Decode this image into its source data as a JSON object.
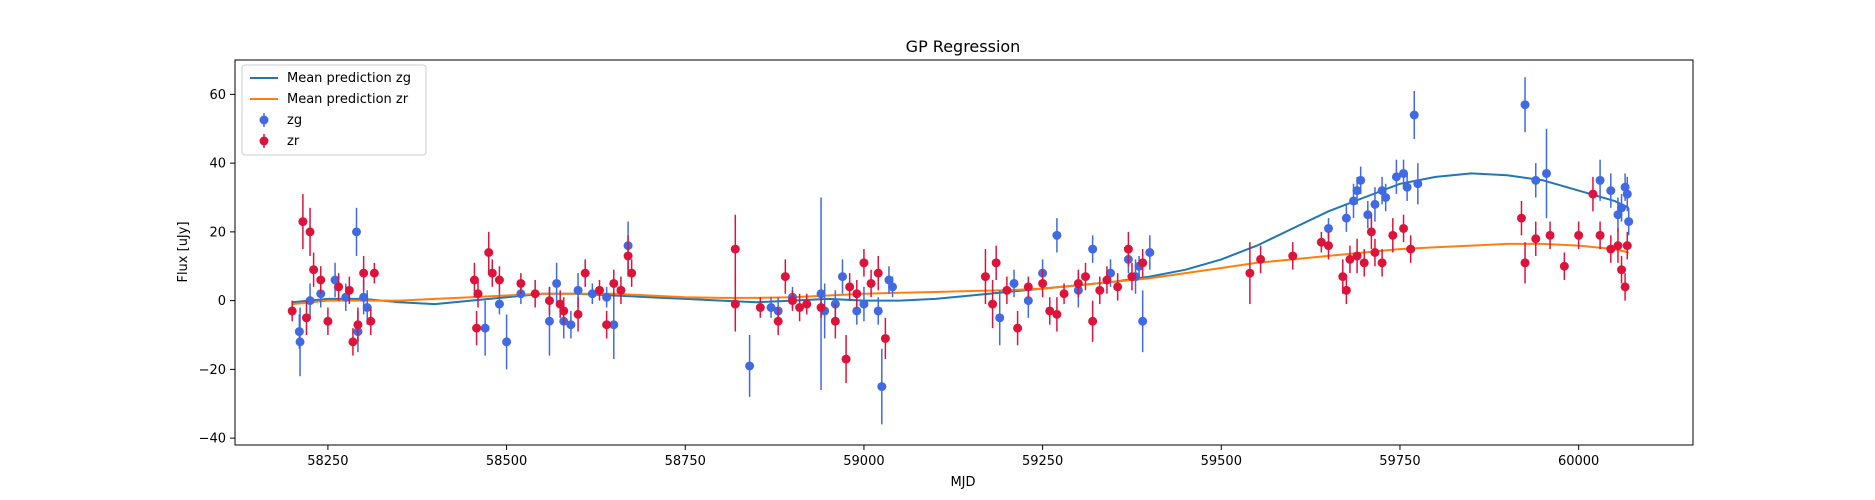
{
  "chart_data": {
    "type": "scatter",
    "title": "GP Regression",
    "xlabel": "MJD",
    "ylabel": "Flux [uJy]",
    "xlim": [
      58120,
      60160
    ],
    "ylim": [
      -42,
      70
    ],
    "xticks": [
      58250,
      58500,
      58750,
      59000,
      59250,
      59500,
      59750,
      60000
    ],
    "yticks": [
      -40,
      -20,
      0,
      20,
      40,
      60
    ],
    "grid": false,
    "legend_position": "top-left",
    "series": [
      {
        "name": "zg",
        "kind": "errorbar",
        "color": "#4169e1",
        "points": [
          [
            58210,
            -9,
            5
          ],
          [
            58211,
            -12,
            10
          ],
          [
            58225,
            0,
            5
          ],
          [
            58240,
            2,
            4
          ],
          [
            58260,
            6,
            5
          ],
          [
            58275,
            1,
            4
          ],
          [
            58290,
            20,
            7
          ],
          [
            58292,
            -9,
            6
          ],
          [
            58300,
            1,
            5
          ],
          [
            58305,
            -2,
            5
          ],
          [
            58470,
            -8,
            8
          ],
          [
            58490,
            -1,
            3
          ],
          [
            58500,
            -12,
            8
          ],
          [
            58520,
            2,
            3
          ],
          [
            58560,
            -6,
            10
          ],
          [
            58570,
            5,
            6
          ],
          [
            58580,
            -6,
            5
          ],
          [
            58590,
            -7,
            4
          ],
          [
            58600,
            3,
            5
          ],
          [
            58620,
            2,
            3
          ],
          [
            58640,
            1,
            3
          ],
          [
            58650,
            -7,
            10
          ],
          [
            58670,
            16,
            7
          ],
          [
            58840,
            -19,
            9
          ],
          [
            58870,
            -2,
            3
          ],
          [
            58880,
            -3,
            4
          ],
          [
            58900,
            1,
            3
          ],
          [
            58940,
            2,
            28
          ],
          [
            58945,
            -3,
            8
          ],
          [
            58960,
            -1,
            4
          ],
          [
            58970,
            7,
            5
          ],
          [
            58990,
            -3,
            4
          ],
          [
            59000,
            -1,
            5
          ],
          [
            59020,
            -3,
            4
          ],
          [
            59025,
            -25,
            11
          ],
          [
            59035,
            6,
            4
          ],
          [
            59040,
            4,
            3
          ],
          [
            59190,
            -5,
            8
          ],
          [
            59210,
            5,
            4
          ],
          [
            59230,
            0,
            5
          ],
          [
            59250,
            8,
            4
          ],
          [
            59270,
            19,
            5
          ],
          [
            59300,
            3,
            5
          ],
          [
            59320,
            15,
            4
          ],
          [
            59345,
            8,
            4
          ],
          [
            59370,
            12,
            4
          ],
          [
            59380,
            7,
            5
          ],
          [
            59385,
            10,
            3
          ],
          [
            59390,
            -6,
            9
          ],
          [
            59400,
            14,
            5
          ],
          [
            59650,
            21,
            3
          ],
          [
            59675,
            24,
            4
          ],
          [
            59685,
            29,
            5
          ],
          [
            59690,
            32,
            4
          ],
          [
            59695,
            35,
            4
          ],
          [
            59705,
            25,
            4
          ],
          [
            59715,
            28,
            5
          ],
          [
            59725,
            32,
            4
          ],
          [
            59730,
            30,
            4
          ],
          [
            59745,
            36,
            5
          ],
          [
            59755,
            37,
            4
          ],
          [
            59760,
            33,
            4
          ],
          [
            59770,
            54,
            7
          ],
          [
            59775,
            34,
            6
          ],
          [
            59925,
            57,
            8
          ],
          [
            59940,
            35,
            5
          ],
          [
            59955,
            37,
            13
          ],
          [
            60030,
            35,
            6
          ],
          [
            60045,
            32,
            5
          ],
          [
            60055,
            25,
            5
          ],
          [
            60060,
            27,
            4
          ],
          [
            60065,
            33,
            4
          ],
          [
            60068,
            31,
            5
          ],
          [
            60070,
            23,
            4
          ]
        ]
      },
      {
        "name": "zr",
        "kind": "errorbar",
        "color": "#dc143c",
        "points": [
          [
            58200,
            -3,
            3
          ],
          [
            58215,
            23,
            8
          ],
          [
            58220,
            -5,
            5
          ],
          [
            58225,
            20,
            7
          ],
          [
            58230,
            9,
            5
          ],
          [
            58240,
            6,
            4
          ],
          [
            58250,
            -6,
            4
          ],
          [
            58265,
            4,
            4
          ],
          [
            58280,
            3,
            4
          ],
          [
            58285,
            -12,
            4
          ],
          [
            58292,
            -7,
            5
          ],
          [
            58300,
            8,
            5
          ],
          [
            58310,
            -6,
            4
          ],
          [
            58315,
            8,
            3
          ],
          [
            58455,
            6,
            5
          ],
          [
            58458,
            -8,
            5
          ],
          [
            58460,
            2,
            4
          ],
          [
            58475,
            14,
            6
          ],
          [
            58480,
            8,
            4
          ],
          [
            58490,
            6,
            4
          ],
          [
            58520,
            5,
            3
          ],
          [
            58540,
            2,
            4
          ],
          [
            58560,
            0,
            4
          ],
          [
            58575,
            -1,
            4
          ],
          [
            58580,
            -3,
            4
          ],
          [
            58600,
            -4,
            5
          ],
          [
            58610,
            8,
            4
          ],
          [
            58630,
            3,
            3
          ],
          [
            58640,
            -7,
            4
          ],
          [
            58650,
            5,
            4
          ],
          [
            58660,
            3,
            4
          ],
          [
            58670,
            13,
            6
          ],
          [
            58675,
            8,
            4
          ],
          [
            58820,
            15,
            10
          ],
          [
            58820,
            -1,
            8
          ],
          [
            58855,
            -2,
            3
          ],
          [
            58880,
            -6,
            4
          ],
          [
            58890,
            7,
            5
          ],
          [
            58900,
            0,
            3
          ],
          [
            58910,
            -2,
            4
          ],
          [
            58920,
            -1,
            3
          ],
          [
            58940,
            -2,
            3
          ],
          [
            58960,
            -6,
            5
          ],
          [
            58975,
            -17,
            7
          ],
          [
            58980,
            4,
            4
          ],
          [
            58990,
            2,
            4
          ],
          [
            59000,
            11,
            4
          ],
          [
            59010,
            5,
            4
          ],
          [
            59020,
            8,
            5
          ],
          [
            59030,
            -11,
            6
          ],
          [
            59170,
            7,
            8
          ],
          [
            59180,
            -1,
            7
          ],
          [
            59185,
            11,
            5
          ],
          [
            59200,
            3,
            4
          ],
          [
            59215,
            -8,
            5
          ],
          [
            59230,
            4,
            3
          ],
          [
            59250,
            5,
            4
          ],
          [
            59260,
            -3,
            4
          ],
          [
            59270,
            -4,
            5
          ],
          [
            59280,
            2,
            3
          ],
          [
            59300,
            5,
            4
          ],
          [
            59310,
            7,
            4
          ],
          [
            59320,
            -6,
            6
          ],
          [
            59330,
            3,
            4
          ],
          [
            59340,
            6,
            4
          ],
          [
            59355,
            4,
            4
          ],
          [
            59370,
            15,
            5
          ],
          [
            59375,
            7,
            4
          ],
          [
            59390,
            11,
            4
          ],
          [
            59540,
            8,
            9
          ],
          [
            59555,
            12,
            4
          ],
          [
            59600,
            13,
            4
          ],
          [
            59640,
            17,
            3
          ],
          [
            59650,
            16,
            4
          ],
          [
            59670,
            7,
            5
          ],
          [
            59675,
            3,
            4
          ],
          [
            59680,
            12,
            4
          ],
          [
            59690,
            13,
            5
          ],
          [
            59700,
            11,
            4
          ],
          [
            59710,
            20,
            5
          ],
          [
            59715,
            14,
            4
          ],
          [
            59725,
            11,
            4
          ],
          [
            59740,
            19,
            5
          ],
          [
            59755,
            21,
            4
          ],
          [
            59765,
            15,
            4
          ],
          [
            59920,
            24,
            5
          ],
          [
            59925,
            11,
            6
          ],
          [
            59940,
            18,
            5
          ],
          [
            59960,
            19,
            4
          ],
          [
            59980,
            10,
            4
          ],
          [
            60000,
            19,
            4
          ],
          [
            60020,
            31,
            5
          ],
          [
            60030,
            19,
            4
          ],
          [
            60045,
            15,
            4
          ],
          [
            60055,
            16,
            5
          ],
          [
            60060,
            9,
            4
          ],
          [
            60065,
            4,
            4
          ],
          [
            60068,
            16,
            4
          ]
        ]
      },
      {
        "name": "Mean prediction zg",
        "kind": "line",
        "color": "#1f77b4",
        "points": [
          [
            58200,
            -0.5
          ],
          [
            58250,
            0.5
          ],
          [
            58300,
            0.5
          ],
          [
            58350,
            -0.5
          ],
          [
            58400,
            -1
          ],
          [
            58450,
            0
          ],
          [
            58500,
            1
          ],
          [
            58550,
            2
          ],
          [
            58600,
            2
          ],
          [
            58650,
            1.5
          ],
          [
            58700,
            1
          ],
          [
            58750,
            0.5
          ],
          [
            58800,
            0
          ],
          [
            58850,
            -0.5
          ],
          [
            58900,
            0
          ],
          [
            58950,
            0.5
          ],
          [
            59000,
            0
          ],
          [
            59050,
            0
          ],
          [
            59100,
            0.5
          ],
          [
            59150,
            1.5
          ],
          [
            59200,
            2.5
          ],
          [
            59250,
            3.5
          ],
          [
            59300,
            4.5
          ],
          [
            59350,
            5.5
          ],
          [
            59400,
            7
          ],
          [
            59450,
            9
          ],
          [
            59500,
            12
          ],
          [
            59550,
            16
          ],
          [
            59600,
            21
          ],
          [
            59650,
            26
          ],
          [
            59700,
            30
          ],
          [
            59750,
            34
          ],
          [
            59800,
            36
          ],
          [
            59850,
            37
          ],
          [
            59900,
            36.5
          ],
          [
            59950,
            35
          ],
          [
            60000,
            32
          ],
          [
            60050,
            29
          ],
          [
            60070,
            27
          ]
        ]
      },
      {
        "name": "Mean prediction zr",
        "kind": "line",
        "color": "#ff7f0e",
        "points": [
          [
            58200,
            -1
          ],
          [
            58250,
            0
          ],
          [
            58300,
            0
          ],
          [
            58350,
            0
          ],
          [
            58400,
            0.5
          ],
          [
            58450,
            1
          ],
          [
            58500,
            1.5
          ],
          [
            58550,
            2
          ],
          [
            58600,
            2
          ],
          [
            58650,
            2
          ],
          [
            58700,
            1.5
          ],
          [
            58750,
            1
          ],
          [
            58800,
            0.8
          ],
          [
            58850,
            0.8
          ],
          [
            58900,
            1
          ],
          [
            58950,
            1.5
          ],
          [
            59000,
            2
          ],
          [
            59050,
            2.3
          ],
          [
            59100,
            2.5
          ],
          [
            59150,
            2.8
          ],
          [
            59200,
            3
          ],
          [
            59250,
            3.5
          ],
          [
            59300,
            4.5
          ],
          [
            59350,
            5.5
          ],
          [
            59400,
            6.5
          ],
          [
            59450,
            8
          ],
          [
            59500,
            9.5
          ],
          [
            59550,
            11
          ],
          [
            59600,
            12
          ],
          [
            59650,
            13
          ],
          [
            59700,
            14
          ],
          [
            59750,
            15
          ],
          [
            59800,
            15.5
          ],
          [
            59850,
            16
          ],
          [
            59900,
            16.5
          ],
          [
            59950,
            16.5
          ],
          [
            60000,
            16
          ],
          [
            60050,
            15
          ],
          [
            60070,
            14
          ]
        ]
      }
    ],
    "legend": [
      "Mean prediction zg",
      "Mean prediction zr",
      "zg",
      "zr"
    ]
  }
}
